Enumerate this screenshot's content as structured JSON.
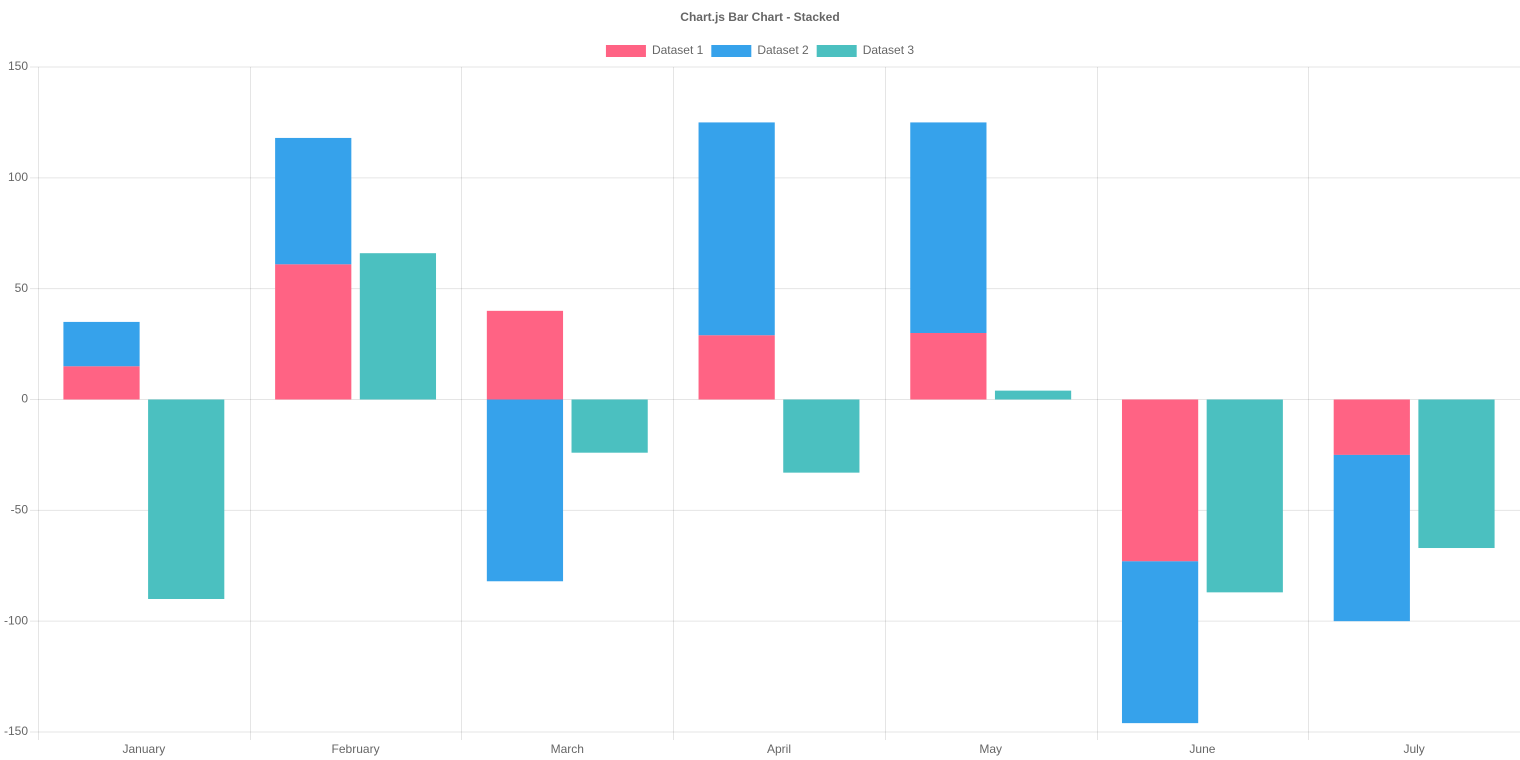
{
  "chart_data": {
    "type": "bar",
    "title": "Chart.js Bar Chart - Stacked",
    "categories": [
      "January",
      "February",
      "March",
      "April",
      "May",
      "June",
      "July"
    ],
    "series": [
      {
        "name": "Dataset 1",
        "color": "#ff6384",
        "stack": 0,
        "values": [
          15,
          61,
          40,
          29,
          30,
          -73,
          -25
        ]
      },
      {
        "name": "Dataset 2",
        "color": "#36a2eb",
        "stack": 0,
        "values": [
          20,
          57,
          -82,
          96,
          95,
          -73,
          -75
        ]
      },
      {
        "name": "Dataset 3",
        "color": "#4bc0c0",
        "stack": 1,
        "values": [
          -90,
          66,
          -24,
          -33,
          4,
          -87,
          -67
        ]
      }
    ],
    "stacked": true,
    "ylim": [
      -150,
      150
    ],
    "yticks": [
      -150,
      -100,
      -50,
      0,
      50,
      100,
      150
    ],
    "grid": true,
    "legend": "top"
  }
}
